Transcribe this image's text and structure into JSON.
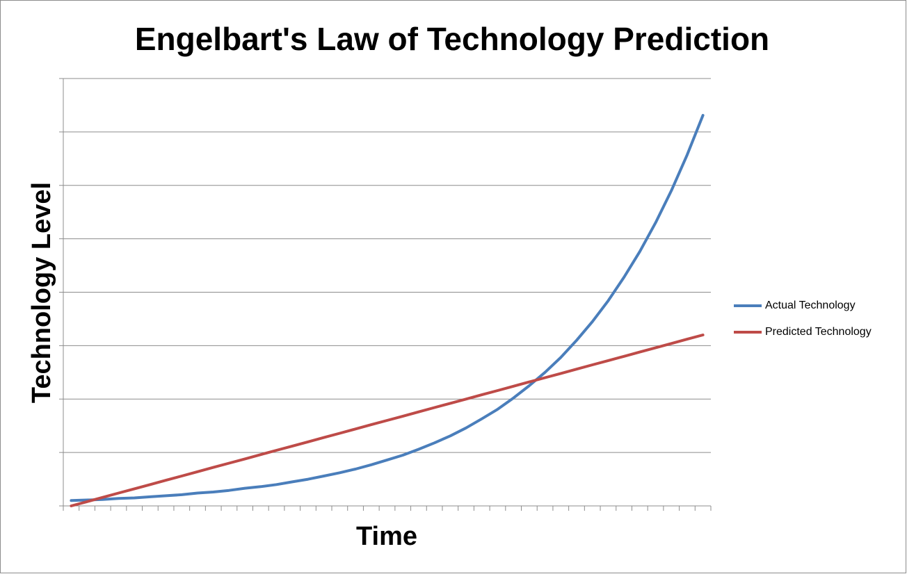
{
  "chart_data": {
    "type": "line",
    "title": "Engelbart's Law of Technology Prediction",
    "x_label": "Time",
    "y_label": "Technology Level",
    "categories": [
      null,
      null,
      null,
      null,
      null,
      null,
      null,
      null,
      null,
      null,
      null,
      null,
      null,
      null,
      null,
      null,
      null,
      null,
      null,
      null,
      null,
      null,
      null,
      null,
      null,
      null,
      null,
      null,
      null,
      null,
      null,
      null,
      null,
      null,
      null,
      null,
      null,
      null,
      null,
      null,
      null
    ],
    "series": [
      {
        "name": "Actual Technology",
        "color": "#4a7ebb",
        "values": [
          0.1,
          0.11,
          0.12,
          0.14,
          0.15,
          0.17,
          0.19,
          0.21,
          0.24,
          0.26,
          0.29,
          0.33,
          0.36,
          0.4,
          0.45,
          0.5,
          0.56,
          0.62,
          0.69,
          0.77,
          0.86,
          0.95,
          1.06,
          1.18,
          1.31,
          1.46,
          1.63,
          1.81,
          2.02,
          2.25,
          2.5,
          2.78,
          3.1,
          3.45,
          3.84,
          4.28,
          4.76,
          5.3,
          5.9,
          6.57,
          7.31
        ]
      },
      {
        "name": "Predicted Technology",
        "color": "#be4b48",
        "values": [
          0,
          0.08,
          0.16,
          0.24,
          0.32,
          0.4,
          0.48,
          0.56,
          0.64,
          0.72,
          0.8,
          0.88,
          0.96,
          1.04,
          1.12,
          1.2,
          1.28,
          1.36,
          1.44,
          1.52,
          1.6,
          1.68,
          1.76,
          1.84,
          1.92,
          2.0,
          2.08,
          2.16,
          2.24,
          2.32,
          2.4,
          2.48,
          2.56,
          2.64,
          2.72,
          2.8,
          2.88,
          2.96,
          3.04,
          3.12,
          3.2
        ]
      }
    ],
    "ylim": [
      0,
      8
    ],
    "yticks": [
      0,
      1,
      2,
      3,
      4,
      5,
      6,
      7,
      8
    ],
    "grid": true,
    "legend": "right"
  }
}
